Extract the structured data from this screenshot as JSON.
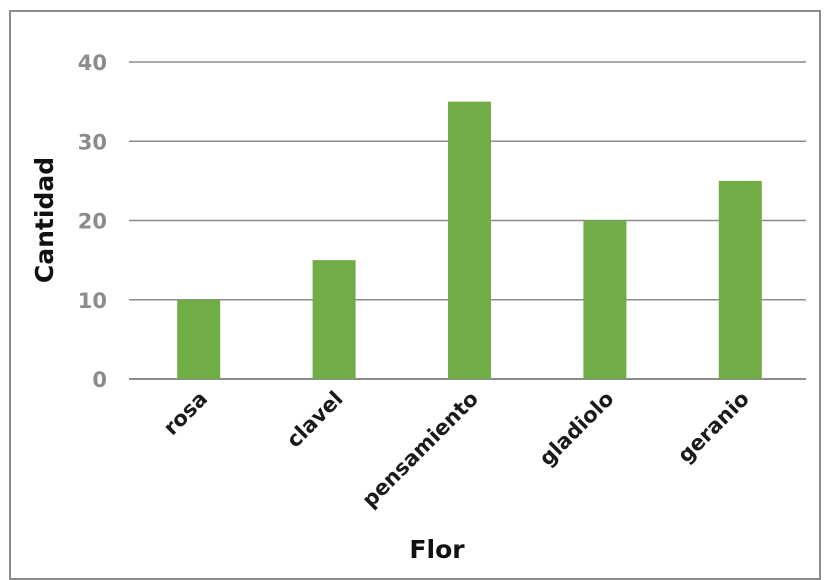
{
  "chart_data": {
    "type": "bar",
    "categories": [
      "rosa",
      "clavel",
      "pensamiento",
      "gladiolo",
      "geranio"
    ],
    "values": [
      10,
      15,
      35,
      20,
      25
    ],
    "title": "",
    "xlabel": "Flor",
    "ylabel": "Cantidad",
    "ylim": [
      0,
      40
    ],
    "yticks": [
      0,
      10,
      20,
      30,
      40
    ],
    "grid": true,
    "bar_color": "#70ad47",
    "grid_color": "#8c8c8c",
    "legend": "none"
  }
}
